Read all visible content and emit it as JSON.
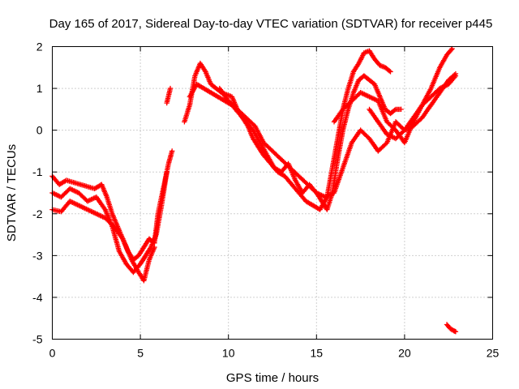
{
  "chart_data": {
    "type": "scatter",
    "title": "Day 165 of 2017, Sidereal Day-to-day VTEC variation (SDTVAR) for receiver p445",
    "xlabel": "GPS time / hours",
    "ylabel": "SDTVAR / TECUs",
    "xlim": [
      0,
      25
    ],
    "ylim": [
      -5,
      2
    ],
    "xticks": [
      0,
      5,
      10,
      15,
      20,
      25
    ],
    "yticks": [
      -5,
      -4,
      -3,
      -2,
      -1,
      0,
      1,
      2
    ],
    "grid": true,
    "marker": "plus",
    "color": "#ff0000",
    "series": [
      {
        "x": [
          0.0,
          0.4,
          0.8,
          1.2,
          1.6,
          2.0,
          2.4,
          2.8,
          3.1,
          3.4,
          3.7,
          4.0,
          4.3,
          4.6,
          4.9,
          5.2,
          5.5,
          5.8,
          6.0,
          6.3,
          6.6,
          6.8
        ],
        "y": [
          -1.1,
          -1.3,
          -1.2,
          -1.25,
          -1.3,
          -1.35,
          -1.4,
          -1.3,
          -1.6,
          -2.0,
          -2.3,
          -2.6,
          -2.9,
          -3.1,
          -3.0,
          -2.8,
          -2.6,
          -2.7,
          -2.0,
          -1.4,
          -0.8,
          -0.5
        ]
      },
      {
        "x": [
          0.0,
          0.5,
          1.0,
          1.5,
          2.0,
          2.5,
          3.0,
          3.4,
          3.8,
          4.2,
          4.6,
          5.0,
          5.3,
          5.6,
          5.9,
          6.2,
          6.5
        ],
        "y": [
          -1.5,
          -1.6,
          -1.4,
          -1.5,
          -1.7,
          -1.6,
          -1.9,
          -2.3,
          -2.9,
          -3.2,
          -3.4,
          -3.2,
          -3.0,
          -2.8,
          -2.5,
          -1.8,
          -1.0
        ]
      },
      {
        "x": [
          0.0,
          0.5,
          1.0,
          1.5,
          2.0,
          2.5,
          3.0,
          3.5,
          4.0,
          4.5,
          4.9,
          5.2,
          5.5,
          5.8
        ],
        "y": [
          -1.9,
          -1.95,
          -1.7,
          -1.8,
          -1.9,
          -2.0,
          -2.1,
          -2.3,
          -2.6,
          -3.1,
          -3.4,
          -3.6,
          -3.1,
          -2.8
        ]
      },
      {
        "x": [
          6.5,
          6.7
        ],
        "y": [
          0.65,
          1.0
        ]
      },
      {
        "x": [
          7.5,
          7.8,
          8.1,
          8.4,
          8.7,
          9.0,
          9.3,
          9.6,
          9.9,
          10.2,
          10.5,
          10.8,
          11.1,
          11.4,
          11.7,
          12.0,
          12.4,
          12.8,
          13.2,
          13.6,
          14.0,
          14.4,
          14.8,
          15.2,
          15.6,
          15.9,
          16.2,
          16.5,
          16.8,
          17.1,
          17.4,
          17.7,
          18.0,
          18.3,
          18.6,
          18.9,
          19.2
        ],
        "y": [
          0.2,
          0.6,
          1.3,
          1.6,
          1.4,
          1.1,
          1.0,
          0.9,
          0.85,
          0.8,
          0.5,
          0.3,
          0.1,
          -0.2,
          -0.4,
          -0.6,
          -0.8,
          -1.0,
          -1.1,
          -1.3,
          -1.5,
          -1.7,
          -1.8,
          -1.9,
          -1.6,
          -0.9,
          -0.2,
          0.5,
          1.0,
          1.4,
          1.6,
          1.85,
          1.9,
          1.7,
          1.55,
          1.5,
          1.4
        ]
      },
      {
        "x": [
          7.8,
          8.2,
          8.6,
          9.0,
          9.4,
          9.8,
          10.2,
          10.6,
          11.0,
          11.4,
          11.8,
          12.2,
          12.6,
          13.0,
          13.4,
          13.8,
          14.2,
          14.6,
          15.0,
          15.3,
          15.6,
          15.9,
          16.2,
          16.5,
          16.8,
          17.1,
          17.4,
          17.7,
          18.0,
          18.3,
          18.6,
          18.9,
          19.2,
          19.5,
          19.8
        ],
        "y": [
          0.8,
          1.1,
          1.0,
          0.9,
          0.8,
          0.7,
          0.6,
          0.4,
          0.2,
          0.0,
          -0.3,
          -0.6,
          -0.9,
          -1.0,
          -0.8,
          -1.2,
          -1.5,
          -1.3,
          -1.5,
          -1.7,
          -1.9,
          -1.5,
          -0.7,
          0.0,
          0.5,
          0.9,
          1.2,
          1.3,
          1.2,
          1.1,
          0.8,
          0.5,
          0.4,
          0.5,
          0.5
        ]
      },
      {
        "x": [
          9.5,
          10.0,
          10.5,
          11.0,
          11.5,
          12.0,
          12.5,
          13.0,
          13.5,
          14.0,
          14.5,
          15.0,
          15.5,
          16.0,
          16.5,
          17.0,
          17.5,
          18.0,
          18.5,
          19.0,
          19.5,
          20.0,
          20.5,
          21.0,
          21.5,
          22.0,
          22.5,
          22.9
        ],
        "y": [
          1.0,
          0.7,
          0.5,
          0.3,
          0.1,
          -0.3,
          -0.5,
          -0.7,
          -0.9,
          -1.1,
          -1.3,
          -1.5,
          -1.6,
          -1.5,
          -0.9,
          -0.3,
          0.0,
          -0.2,
          -0.5,
          -0.3,
          0.2,
          0.0,
          0.3,
          0.6,
          0.8,
          1.0,
          1.1,
          1.3
        ]
      },
      {
        "x": [
          16.0,
          16.5,
          17.0,
          17.5,
          18.0,
          18.5,
          19.0,
          19.5,
          20.0,
          20.5,
          21.0,
          21.5,
          22.0,
          22.4,
          22.7
        ],
        "y": [
          0.2,
          0.5,
          0.7,
          0.9,
          0.8,
          0.7,
          0.2,
          0.0,
          -0.3,
          0.2,
          0.6,
          1.0,
          1.5,
          1.8,
          1.95
        ]
      },
      {
        "x": [
          18.0,
          18.5,
          19.0,
          19.5,
          20.0,
          20.5,
          21.0,
          21.5,
          22.0,
          22.5,
          22.9
        ],
        "y": [
          0.5,
          0.2,
          -0.1,
          -0.2,
          0.0,
          0.1,
          0.3,
          0.6,
          0.9,
          1.2,
          1.35
        ]
      },
      {
        "x": [
          22.4,
          22.6,
          22.8,
          22.9
        ],
        "y": [
          -4.65,
          -4.75,
          -4.8,
          -4.82
        ]
      }
    ]
  }
}
